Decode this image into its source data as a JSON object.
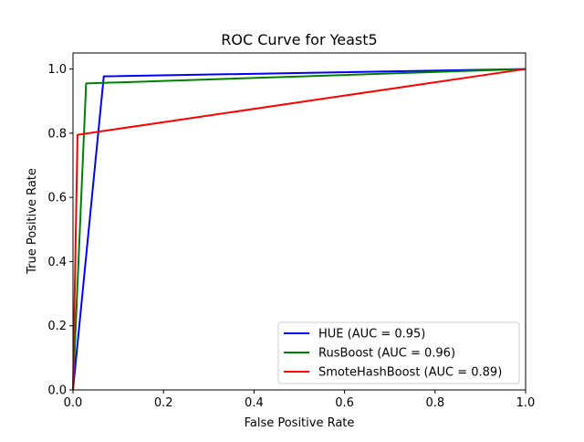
{
  "chart_data": {
    "type": "line",
    "title": "ROC Curve for Yeast5",
    "xlabel": "False Positive Rate",
    "ylabel": "True Positive Rate",
    "xlim": [
      0.0,
      1.0
    ],
    "ylim": [
      0.0,
      1.05
    ],
    "xticks": [
      0.0,
      0.2,
      0.4,
      0.6,
      0.8,
      1.0
    ],
    "yticks": [
      0.0,
      0.2,
      0.4,
      0.6,
      0.8,
      1.0
    ],
    "xtick_labels": [
      "0.0",
      "0.2",
      "0.4",
      "0.6",
      "0.8",
      "1.0"
    ],
    "ytick_labels": [
      "0.0",
      "0.2",
      "0.4",
      "0.6",
      "0.8",
      "1.0"
    ],
    "grid": false,
    "legend_position": "lower-right",
    "series": [
      {
        "name": "HUE (AUC = 0.95)",
        "color": "#0000ff",
        "x": [
          0.0,
          0.068,
          1.0
        ],
        "y": [
          0.0,
          0.977,
          1.0
        ]
      },
      {
        "name": "RusBoost (AUC = 0.96)",
        "color": "#008000",
        "x": [
          0.0,
          0.029,
          1.0
        ],
        "y": [
          0.0,
          0.955,
          1.0
        ]
      },
      {
        "name": "SmoteHashBoost (AUC = 0.89)",
        "color": "#ff0000",
        "x": [
          0.0,
          0.01,
          1.0
        ],
        "y": [
          0.0,
          0.795,
          1.0
        ]
      }
    ]
  }
}
